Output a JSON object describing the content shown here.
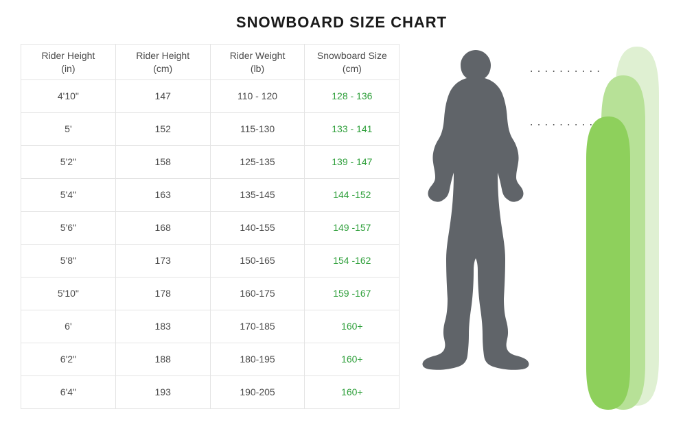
{
  "title": "SNOWBOARD SIZE CHART",
  "table": {
    "columns": [
      {
        "line1": "Rider Height",
        "line2": "(in)"
      },
      {
        "line1": "Rider Height",
        "line2": "(cm)"
      },
      {
        "line1": "Rider Weight",
        "line2": "(lb)"
      },
      {
        "line1": "Snowboard Size",
        "line2": "(cm)"
      }
    ],
    "rows": [
      {
        "height_in": "4'10\"",
        "height_cm": "147",
        "weight_lb": "110 - 120",
        "size_cm": "128 - 136"
      },
      {
        "height_in": "5'",
        "height_cm": "152",
        "weight_lb": "115-130",
        "size_cm": "133 - 141"
      },
      {
        "height_in": "5'2\"",
        "height_cm": "158",
        "weight_lb": "125-135",
        "size_cm": "139 - 147"
      },
      {
        "height_in": "5'4\"",
        "height_cm": "163",
        "weight_lb": "135-145",
        "size_cm": "144 -152"
      },
      {
        "height_in": "5'6\"",
        "height_cm": "168",
        "weight_lb": "140-155",
        "size_cm": "149 -157"
      },
      {
        "height_in": "5'8\"",
        "height_cm": "173",
        "weight_lb": "150-165",
        "size_cm": "154 -162"
      },
      {
        "height_in": "5'10\"",
        "height_cm": "178",
        "weight_lb": "160-175",
        "size_cm": "159 -167"
      },
      {
        "height_in": "6'",
        "height_cm": "183",
        "weight_lb": "170-185",
        "size_cm": "160+"
      },
      {
        "height_in": "6'2\"",
        "height_cm": "188",
        "weight_lb": "180-195",
        "size_cm": "160+"
      },
      {
        "height_in": "6'4\"",
        "height_cm": "193",
        "weight_lb": "190-205",
        "size_cm": "160+"
      }
    ],
    "border_color": "#e4e4e4",
    "text_color": "#4a4a4a",
    "size_color": "#2e9f3a",
    "font_size": 14
  },
  "illustration": {
    "rider_color": "#606469",
    "board_colors": {
      "back": "#dff0d2",
      "mid": "#b7e197",
      "front": "#8ed05c"
    },
    "dot_color": "#555555",
    "dot_line_top": "..........",
    "dot_line_mid": ".........."
  }
}
